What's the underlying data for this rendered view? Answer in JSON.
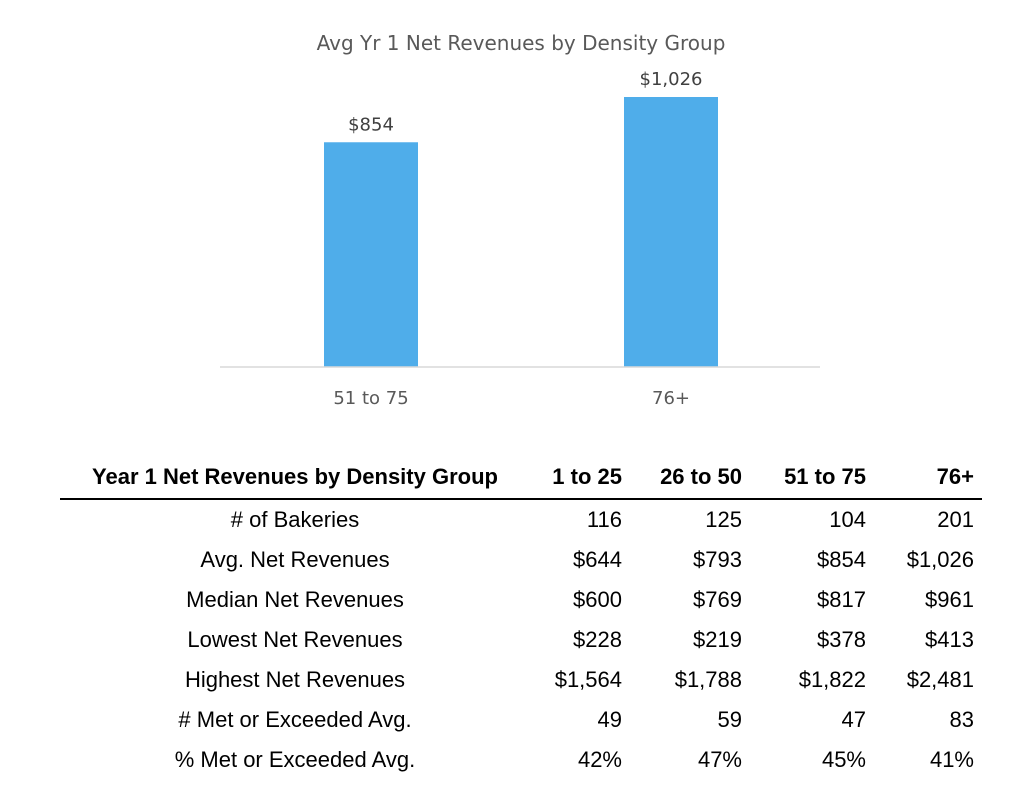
{
  "chart_data": {
    "type": "bar",
    "title": "Avg Yr 1 Net Revenues by Density Group",
    "categories": [
      "51 to 75",
      "76+"
    ],
    "values": [
      854,
      1026
    ],
    "data_labels": [
      "$854",
      "$1,026"
    ],
    "bar_color": "#4FADEA",
    "ylim": [
      0,
      1100
    ],
    "grid": false,
    "legend": "none"
  },
  "table": {
    "title": "Year 1 Net Revenues by Density Group",
    "columns": [
      "1 to 25",
      "26 to 50",
      "51 to 75",
      "76+"
    ],
    "rows": [
      {
        "label": "# of Bakeries",
        "values": [
          "116",
          "125",
          "104",
          "201"
        ]
      },
      {
        "label": "Avg. Net Revenues",
        "values": [
          "$644",
          "$793",
          "$854",
          "$1,026"
        ]
      },
      {
        "label": "Median Net Revenues",
        "values": [
          "$600",
          "$769",
          "$817",
          "$961"
        ]
      },
      {
        "label": "Lowest Net Revenues",
        "values": [
          "$228",
          "$219",
          "$378",
          "$413"
        ]
      },
      {
        "label": "Highest Net Revenues",
        "values": [
          "$1,564",
          "$1,788",
          "$1,822",
          "$2,481"
        ]
      },
      {
        "label": "# Met or Exceeded Avg.",
        "values": [
          "49",
          "59",
          "47",
          "83"
        ]
      },
      {
        "label": "% Met or Exceeded Avg.",
        "values": [
          "42%",
          "47%",
          "45%",
          "41%"
        ]
      }
    ]
  }
}
